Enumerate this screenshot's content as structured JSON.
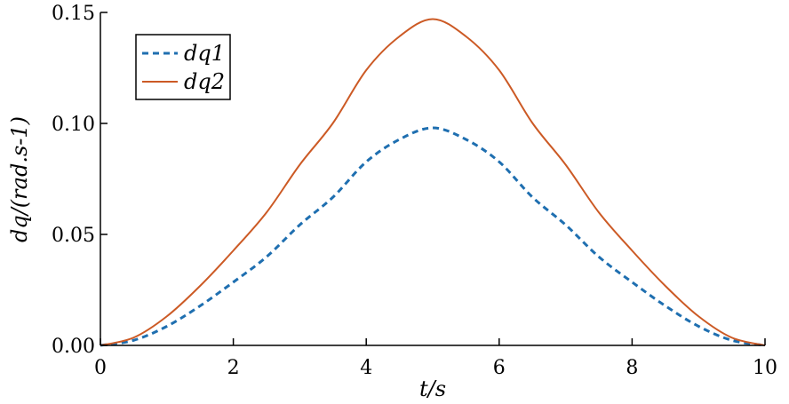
{
  "chart_data": {
    "type": "line",
    "xlabel": "t/s",
    "ylabel": "dq/(rad.s-1)",
    "xlim": [
      0,
      10
    ],
    "ylim": [
      0,
      0.15
    ],
    "xticks": [
      "0",
      "2",
      "4",
      "6",
      "8",
      "10"
    ],
    "yticks": [
      "0.00",
      "0.05",
      "0.10",
      "0.15"
    ],
    "legend": {
      "placement": "top-left"
    },
    "grid": false,
    "series": [
      {
        "name": "dq1",
        "color": "#1f6fb0",
        "style": "dashed",
        "x": [
          0,
          0.5,
          1,
          1.5,
          2,
          2.5,
          3,
          3.5,
          4,
          4.5,
          5,
          5.5,
          6,
          6.5,
          7,
          7.5,
          8,
          8.5,
          9,
          9.5,
          10
        ],
        "y": [
          0.0,
          0.0023,
          0.0086,
          0.0178,
          0.0285,
          0.0399,
          0.0543,
          0.0668,
          0.0827,
          0.0928,
          0.098,
          0.0928,
          0.0827,
          0.0668,
          0.0543,
          0.0399,
          0.0285,
          0.0178,
          0.0086,
          0.0023,
          0.0
        ]
      },
      {
        "name": "dq2",
        "color": "#cc5a25",
        "style": "solid",
        "x": [
          0,
          0.5,
          1,
          1.5,
          2,
          2.5,
          3,
          3.5,
          4,
          4.5,
          5,
          5.5,
          6,
          6.5,
          7,
          7.5,
          8,
          8.5,
          9,
          9.5,
          10
        ],
        "y": [
          0.0,
          0.0035,
          0.0131,
          0.0268,
          0.0427,
          0.0599,
          0.0814,
          0.1002,
          0.124,
          0.1392,
          0.147,
          0.1392,
          0.124,
          0.1002,
          0.0814,
          0.0599,
          0.0427,
          0.0268,
          0.0131,
          0.0035,
          0.0
        ]
      }
    ]
  }
}
